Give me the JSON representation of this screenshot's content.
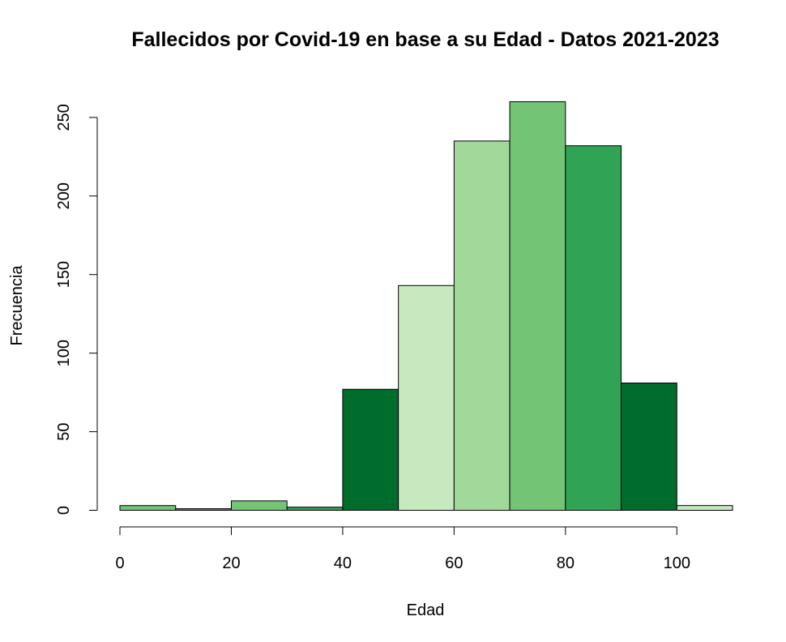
{
  "chart_data": {
    "type": "bar",
    "title": "Fallecidos por Covid-19 en base a su Edad - Datos 2021-2023",
    "xlabel": "Edad",
    "ylabel": "Frecuencia",
    "xlim": [
      0,
      110
    ],
    "ylim": [
      0,
      260
    ],
    "x_ticks": [
      0,
      20,
      40,
      60,
      80,
      100
    ],
    "y_ticks": [
      0,
      50,
      100,
      150,
      200,
      250
    ],
    "bins": [
      {
        "start": 0,
        "end": 10,
        "count": 3,
        "color": "#74c476"
      },
      {
        "start": 10,
        "end": 20,
        "count": 1,
        "color": "#31a354"
      },
      {
        "start": 20,
        "end": 30,
        "count": 6,
        "color": "#74c476"
      },
      {
        "start": 30,
        "end": 40,
        "count": 2,
        "color": "#31a354"
      },
      {
        "start": 40,
        "end": 50,
        "count": 77,
        "color": "#006d2c"
      },
      {
        "start": 50,
        "end": 60,
        "count": 143,
        "color": "#c7e9c0"
      },
      {
        "start": 60,
        "end": 70,
        "count": 235,
        "color": "#a1d99b"
      },
      {
        "start": 70,
        "end": 80,
        "count": 260,
        "color": "#74c476"
      },
      {
        "start": 80,
        "end": 90,
        "count": 232,
        "color": "#31a354"
      },
      {
        "start": 90,
        "end": 100,
        "count": 81,
        "color": "#006d2c"
      },
      {
        "start": 100,
        "end": 110,
        "count": 3,
        "color": "#c7e9c0"
      }
    ],
    "grid": false,
    "legend": "none"
  }
}
